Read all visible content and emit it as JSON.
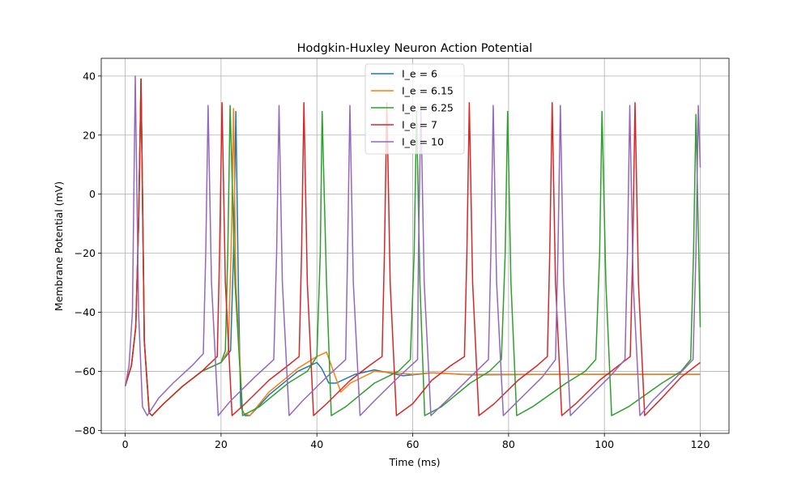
{
  "chart_data": {
    "type": "line",
    "title": "Hodgkin-Huxley Neuron Action Potential",
    "xlabel": "Time (ms)",
    "ylabel": "Membrane Potential (mV)",
    "xlim": [
      -5,
      126
    ],
    "ylim": [
      -81,
      46
    ],
    "xticks": [
      0,
      20,
      40,
      60,
      80,
      100,
      120
    ],
    "yticks": [
      -80,
      -60,
      -40,
      -20,
      0,
      20,
      40
    ],
    "xtick_labels": [
      "0",
      "20",
      "40",
      "60",
      "80",
      "100",
      "120"
    ],
    "ytick_labels": [
      "−80",
      "−60",
      "−40",
      "−20",
      "0",
      "20",
      "40"
    ],
    "grid": true,
    "legend_position": "upper-center",
    "series": [
      {
        "name": "I_e = 6",
        "color": "#1f77b4",
        "x": [
          0,
          1.3,
          2.2,
          2.8,
          3.3,
          4,
          5,
          5.6,
          8,
          12,
          16,
          20,
          22,
          22.6,
          23.1,
          23.6,
          24.1,
          25,
          26,
          30,
          36,
          40,
          41,
          42.5,
          44,
          48,
          52,
          55,
          58,
          61,
          64,
          68,
          72,
          80,
          90,
          100,
          110,
          120
        ],
        "y": [
          -65,
          -58,
          -45,
          -10,
          38,
          -50,
          -74,
          -75,
          -71,
          -65,
          -60,
          -57,
          -53,
          -20,
          28,
          -30,
          -72,
          -75,
          -75,
          -68,
          -60,
          -57,
          -59,
          -64,
          -64,
          -61,
          -59.5,
          -60.5,
          -61.5,
          -61,
          -60.5,
          -60.8,
          -61.2,
          -61.1,
          -61,
          -61,
          -61,
          -61
        ]
      },
      {
        "name": "I_e = 6.15",
        "color": "#ff7f0e",
        "x": [
          0,
          1.3,
          2.2,
          2.8,
          3.3,
          4,
          5,
          5.6,
          8,
          12,
          16,
          20,
          21.5,
          22.1,
          22.6,
          23.1,
          24.5,
          26,
          30,
          36,
          40,
          42,
          43,
          45,
          47,
          52,
          56,
          60,
          64,
          70,
          80,
          90,
          100,
          110,
          120
        ],
        "y": [
          -65,
          -58,
          -45,
          -10,
          39,
          -50,
          -74,
          -75,
          -71,
          -65,
          -60,
          -57,
          -53,
          -20,
          29,
          -30,
          -74,
          -75,
          -67,
          -59,
          -55,
          -53.5,
          -58,
          -67,
          -64,
          -60,
          -60.5,
          -61,
          -60.5,
          -61,
          -61,
          -61,
          -61,
          -61,
          -61
        ]
      },
      {
        "name": "I_e = 6.25",
        "color": "#2ca02c",
        "x": [
          0,
          1.3,
          2.2,
          2.8,
          3.3,
          4,
          5,
          5.6,
          8,
          12,
          16,
          20,
          20.9,
          21.4,
          21.9,
          22.9,
          24.5,
          28,
          34,
          38,
          40,
          40.7,
          41.1,
          42,
          43,
          46,
          52,
          57,
          59.5,
          60.3,
          60.8,
          61.5,
          62.5,
          66,
          72,
          76,
          78.5,
          79.3,
          79.8,
          80.5,
          81.7,
          85,
          92,
          96,
          98.2,
          99,
          99.5,
          100.3,
          101.5,
          105,
          112,
          116,
          118,
          118.6,
          119.1,
          120
        ],
        "y": [
          -65,
          -58,
          -45,
          -10,
          39,
          -50,
          -74,
          -75,
          -71,
          -65,
          -60,
          -57,
          -53,
          -20,
          30,
          -30,
          -75,
          -72,
          -64,
          -60,
          -55,
          -20,
          28,
          -30,
          -75,
          -72,
          -64,
          -60,
          -56,
          -20,
          28,
          -30,
          -75,
          -72,
          -64,
          -60,
          -56,
          -20,
          28,
          -30,
          -75,
          -72,
          -64,
          -60,
          -56,
          -20,
          28,
          -30,
          -75,
          -72,
          -64,
          -60,
          -56,
          -20,
          27,
          -45
        ]
      },
      {
        "name": "I_e = 7",
        "color": "#d62728",
        "x": [
          0,
          1.3,
          2.2,
          2.8,
          3.3,
          4,
          5,
          5.6,
          8,
          12,
          16,
          19.2,
          19.7,
          20.2,
          20.9,
          22.3,
          25,
          30,
          34,
          36.3,
          36.8,
          37.3,
          38,
          39.3,
          42,
          47,
          51,
          53.6,
          54.1,
          54.6,
          55.3,
          56.6,
          60,
          64,
          68,
          70.8,
          71.3,
          71.8,
          72.5,
          73.8,
          77,
          82,
          86,
          88.1,
          88.6,
          89.1,
          89.8,
          91.1,
          94,
          99,
          103,
          105.4,
          105.9,
          106.4,
          107.1,
          108.4,
          112,
          116,
          120
        ],
        "y": [
          -65,
          -58,
          -45,
          -10,
          39,
          -50,
          -74,
          -75,
          -71,
          -65,
          -60,
          -55,
          -20,
          31,
          -30,
          -75,
          -71,
          -63,
          -58,
          -55,
          -20,
          31,
          -30,
          -75,
          -71,
          -63,
          -58,
          -55,
          -20,
          31,
          -30,
          -75,
          -71,
          -63,
          -58,
          -55,
          -20,
          31,
          -30,
          -75,
          -71,
          -63,
          -58,
          -55,
          -20,
          31,
          -30,
          -75,
          -71,
          -63,
          -58,
          -55,
          -20,
          31,
          -30,
          -75,
          -69,
          -62,
          -57
        ]
      },
      {
        "name": "I_e = 10",
        "color": "#9467bd",
        "x": [
          0,
          0.8,
          1.5,
          2.1,
          2.8,
          3.6,
          4.6,
          5,
          7,
          10,
          14,
          16.3,
          16.8,
          17.3,
          18,
          19.4,
          22,
          27,
          31,
          31.6,
          32.1,
          32.8,
          34.2,
          37,
          42,
          46,
          46.4,
          46.9,
          47.6,
          49,
          52,
          57,
          61,
          61.2,
          61.7,
          62.4,
          63.8,
          67,
          72,
          75.8,
          76.3,
          76.8,
          77.5,
          78.9,
          82,
          87,
          89.8,
          90.3,
          90.8,
          91.5,
          92.9,
          96,
          101,
          104.3,
          104.8,
          105.3,
          106,
          107.4,
          110,
          115,
          118.5,
          119.1,
          119.6,
          120
        ],
        "y": [
          -65,
          -58,
          -40,
          40,
          -40,
          -72,
          -75,
          -74,
          -69,
          -64,
          -58,
          -54,
          -20,
          30,
          -30,
          -75,
          -70,
          -62,
          -56,
          -20,
          30,
          -30,
          -75,
          -70,
          -62,
          -56,
          -20,
          30,
          -30,
          -75,
          -70,
          -62,
          -56,
          -20,
          30,
          -30,
          -75,
          -70,
          -62,
          -56,
          -20,
          30,
          -30,
          -75,
          -70,
          -62,
          -56,
          -20,
          30,
          -30,
          -75,
          -70,
          -62,
          -56,
          -20,
          30,
          -30,
          -75,
          -70,
          -62,
          -56,
          -20,
          30,
          9
        ]
      }
    ]
  }
}
